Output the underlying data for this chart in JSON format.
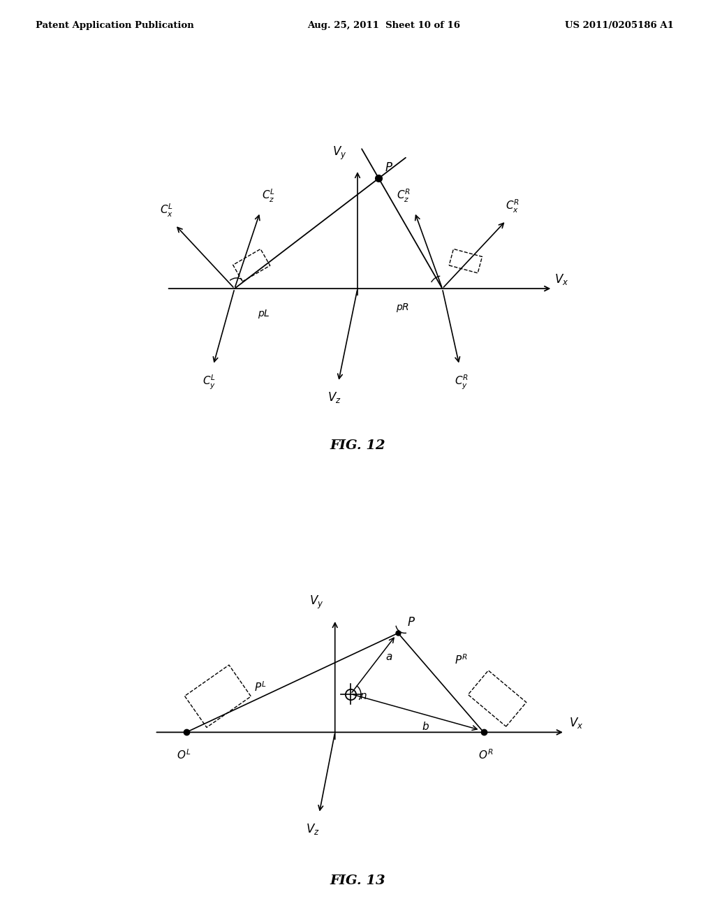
{
  "bg_color": "#ffffff",
  "header_text": "Patent Application Publication",
  "header_date": "Aug. 25, 2011  Sheet 10 of 16",
  "header_patent": "US 2011/0205186 A1",
  "fig12_label": "FIG. 12",
  "fig13_label": "FIG. 13"
}
